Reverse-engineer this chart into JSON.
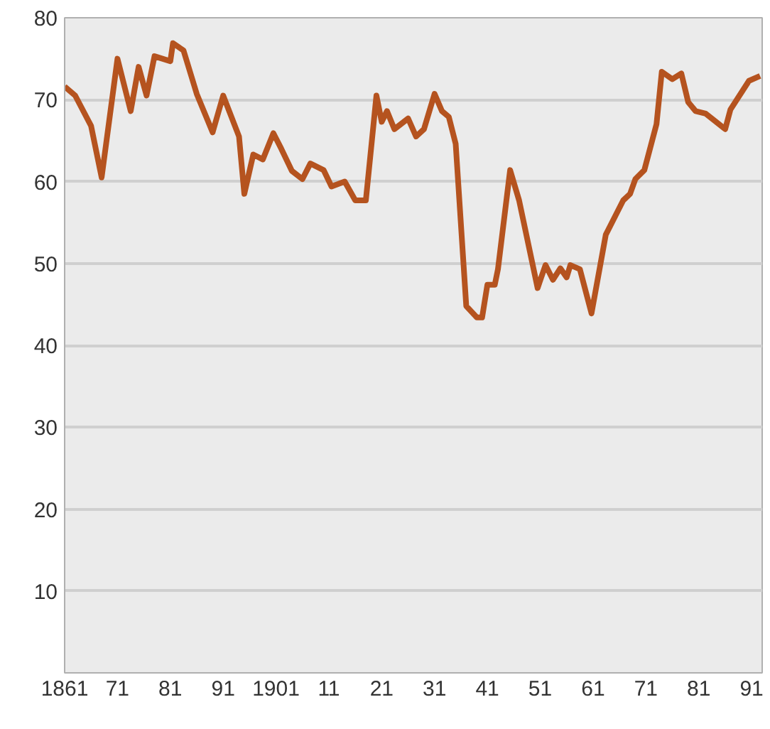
{
  "chart_data": {
    "type": "line",
    "x": [
      1861,
      1863,
      1866,
      1868,
      1871,
      1873.5,
      1875,
      1876.5,
      1878,
      1881,
      1881.5,
      1883.5,
      1886,
      1889,
      1891,
      1894,
      1895,
      1896.7,
      1898.5,
      1900.5,
      1902,
      1904,
      1906,
      1907.5,
      1910,
      1911.5,
      1914,
      1916,
      1918,
      1920,
      1921,
      1922,
      1923.4,
      1926,
      1927.5,
      1929,
      1931,
      1932.4,
      1933.7,
      1935,
      1937,
      1939,
      1940,
      1941,
      1942.4,
      1943,
      1945.3,
      1947,
      1950.5,
      1952,
      1953.4,
      1954.8,
      1956,
      1956.7,
      1958.5,
      1960.7,
      1963.4,
      1966.7,
      1968,
      1969,
      1970.7,
      1973,
      1974,
      1976,
      1977.7,
      1979,
      1980.4,
      1982.3,
      1986,
      1987,
      1990.5,
      1992.6
    ],
    "series": [
      {
        "color": "#b5531f",
        "values": [
          71.6,
          70.5,
          66.8,
          60.5,
          75,
          68.6,
          74,
          70.5,
          75.3,
          74.7,
          76.9,
          76,
          70.7,
          66,
          70.5,
          65.5,
          58.5,
          63.3,
          62.7,
          65.9,
          64,
          61.3,
          60.3,
          62.2,
          61.4,
          59.4,
          60,
          57.7,
          57.7,
          70.5,
          67.3,
          68.6,
          66.4,
          67.7,
          65.5,
          66.4,
          70.7,
          68.6,
          67.9,
          64.6,
          44.8,
          43.4,
          43.4,
          47.4,
          47.4,
          49.3,
          61.4,
          57.7,
          47,
          49.8,
          48,
          49.4,
          48.3,
          49.8,
          49.3,
          43.9,
          53.5,
          57.7,
          58.5,
          60.3,
          61.4,
          67,
          73.4,
          72.5,
          73.2,
          69.7,
          68.6,
          68.3,
          66.4,
          68.8,
          72.3,
          72.9
        ]
      }
    ],
    "xlim": [
      1861,
      1993
    ],
    "ylim": [
      0,
      80
    ],
    "xticks": [
      {
        "value": 1861,
        "label": "1861"
      },
      {
        "value": 1871,
        "label": "71"
      },
      {
        "value": 1881,
        "label": "81"
      },
      {
        "value": 1891,
        "label": "91"
      },
      {
        "value": 1901,
        "label": "1901"
      },
      {
        "value": 1911,
        "label": "11"
      },
      {
        "value": 1921,
        "label": "21"
      },
      {
        "value": 1931,
        "label": "31"
      },
      {
        "value": 1941,
        "label": "41"
      },
      {
        "value": 1951,
        "label": "51"
      },
      {
        "value": 1961,
        "label": "61"
      },
      {
        "value": 1971,
        "label": "71"
      },
      {
        "value": 1981,
        "label": "81"
      },
      {
        "value": 1991,
        "label": "91"
      }
    ],
    "yticks": [
      10,
      20,
      30,
      40,
      50,
      60,
      70,
      80
    ],
    "grid": "y",
    "line_style": "solid"
  }
}
